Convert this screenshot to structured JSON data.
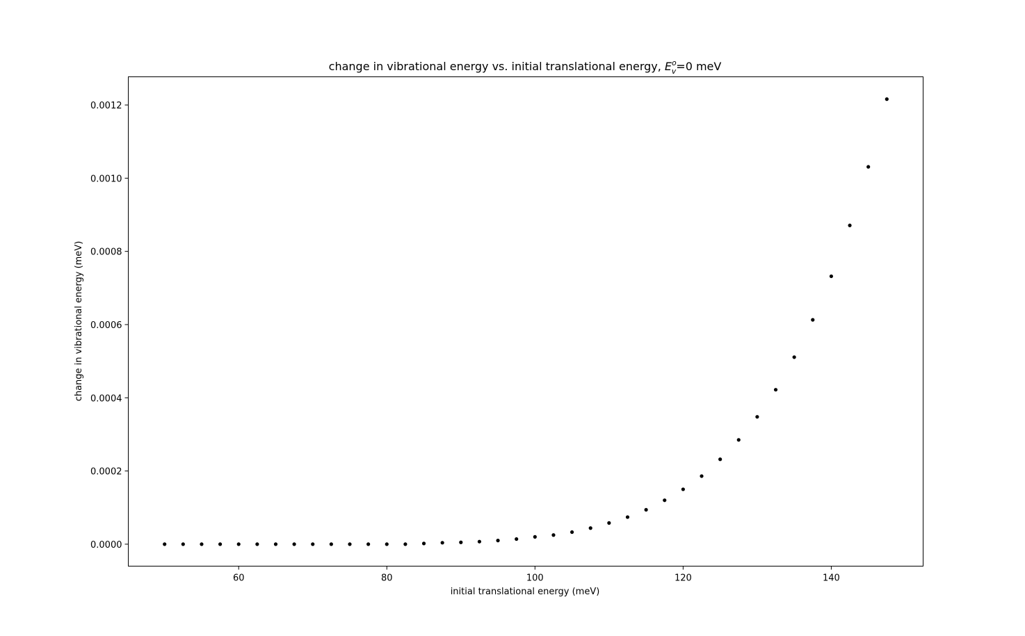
{
  "chart_data": {
    "type": "scatter",
    "title_main": "change in vibrational energy vs. initial translational energy, ",
    "title_symbol": "E",
    "title_sup": "o",
    "title_sub": "v",
    "title_tail": "=0 meV",
    "xlabel": "initial translational energy (meV)",
    "ylabel": "change in vibrational energy (meV)",
    "xlim": [
      45.1,
      152.4
    ],
    "ylim": [
      -6e-05,
      0.001277
    ],
    "xticks": [
      60,
      80,
      100,
      120,
      140
    ],
    "yticks": [
      0.0,
      0.0002,
      0.0004,
      0.0006,
      0.0008,
      0.001,
      0.0012
    ],
    "xtick_labels": [
      "60",
      "80",
      "100",
      "120",
      "140"
    ],
    "ytick_labels": [
      "0.0000",
      "0.0002",
      "0.0004",
      "0.0006",
      "0.0008",
      "0.0010",
      "0.0012"
    ],
    "grid": false,
    "marker_color": "#000000",
    "x": [
      50,
      52.5,
      55,
      57.5,
      60,
      62.5,
      65,
      67.5,
      70,
      72.5,
      75,
      77.5,
      80,
      82.5,
      85,
      87.5,
      90,
      92.5,
      95,
      97.5,
      100,
      102.5,
      105,
      107.5,
      110,
      112.5,
      115,
      117.5,
      120,
      122.5,
      125,
      127.5,
      130,
      132.5,
      135,
      137.5,
      140,
      142.5,
      145,
      147.5
    ],
    "y": [
      0.0,
      0.0,
      0.0,
      0.0,
      0.0,
      0.0,
      0.0,
      0.0,
      0.0,
      0.0,
      0.0,
      0.0,
      0.0,
      0.0,
      2e-06,
      4e-06,
      5e-06,
      7e-06,
      1e-05,
      1.4e-05,
      2e-05,
      2.5e-05,
      3.3e-05,
      4.4e-05,
      5.8e-05,
      7.4e-05,
      9.4e-05,
      0.00012,
      0.00015,
      0.000186,
      0.000232,
      0.000285,
      0.000348,
      0.000422,
      0.000511,
      0.000613,
      0.000732,
      0.000871,
      0.001031,
      0.001216
    ]
  }
}
